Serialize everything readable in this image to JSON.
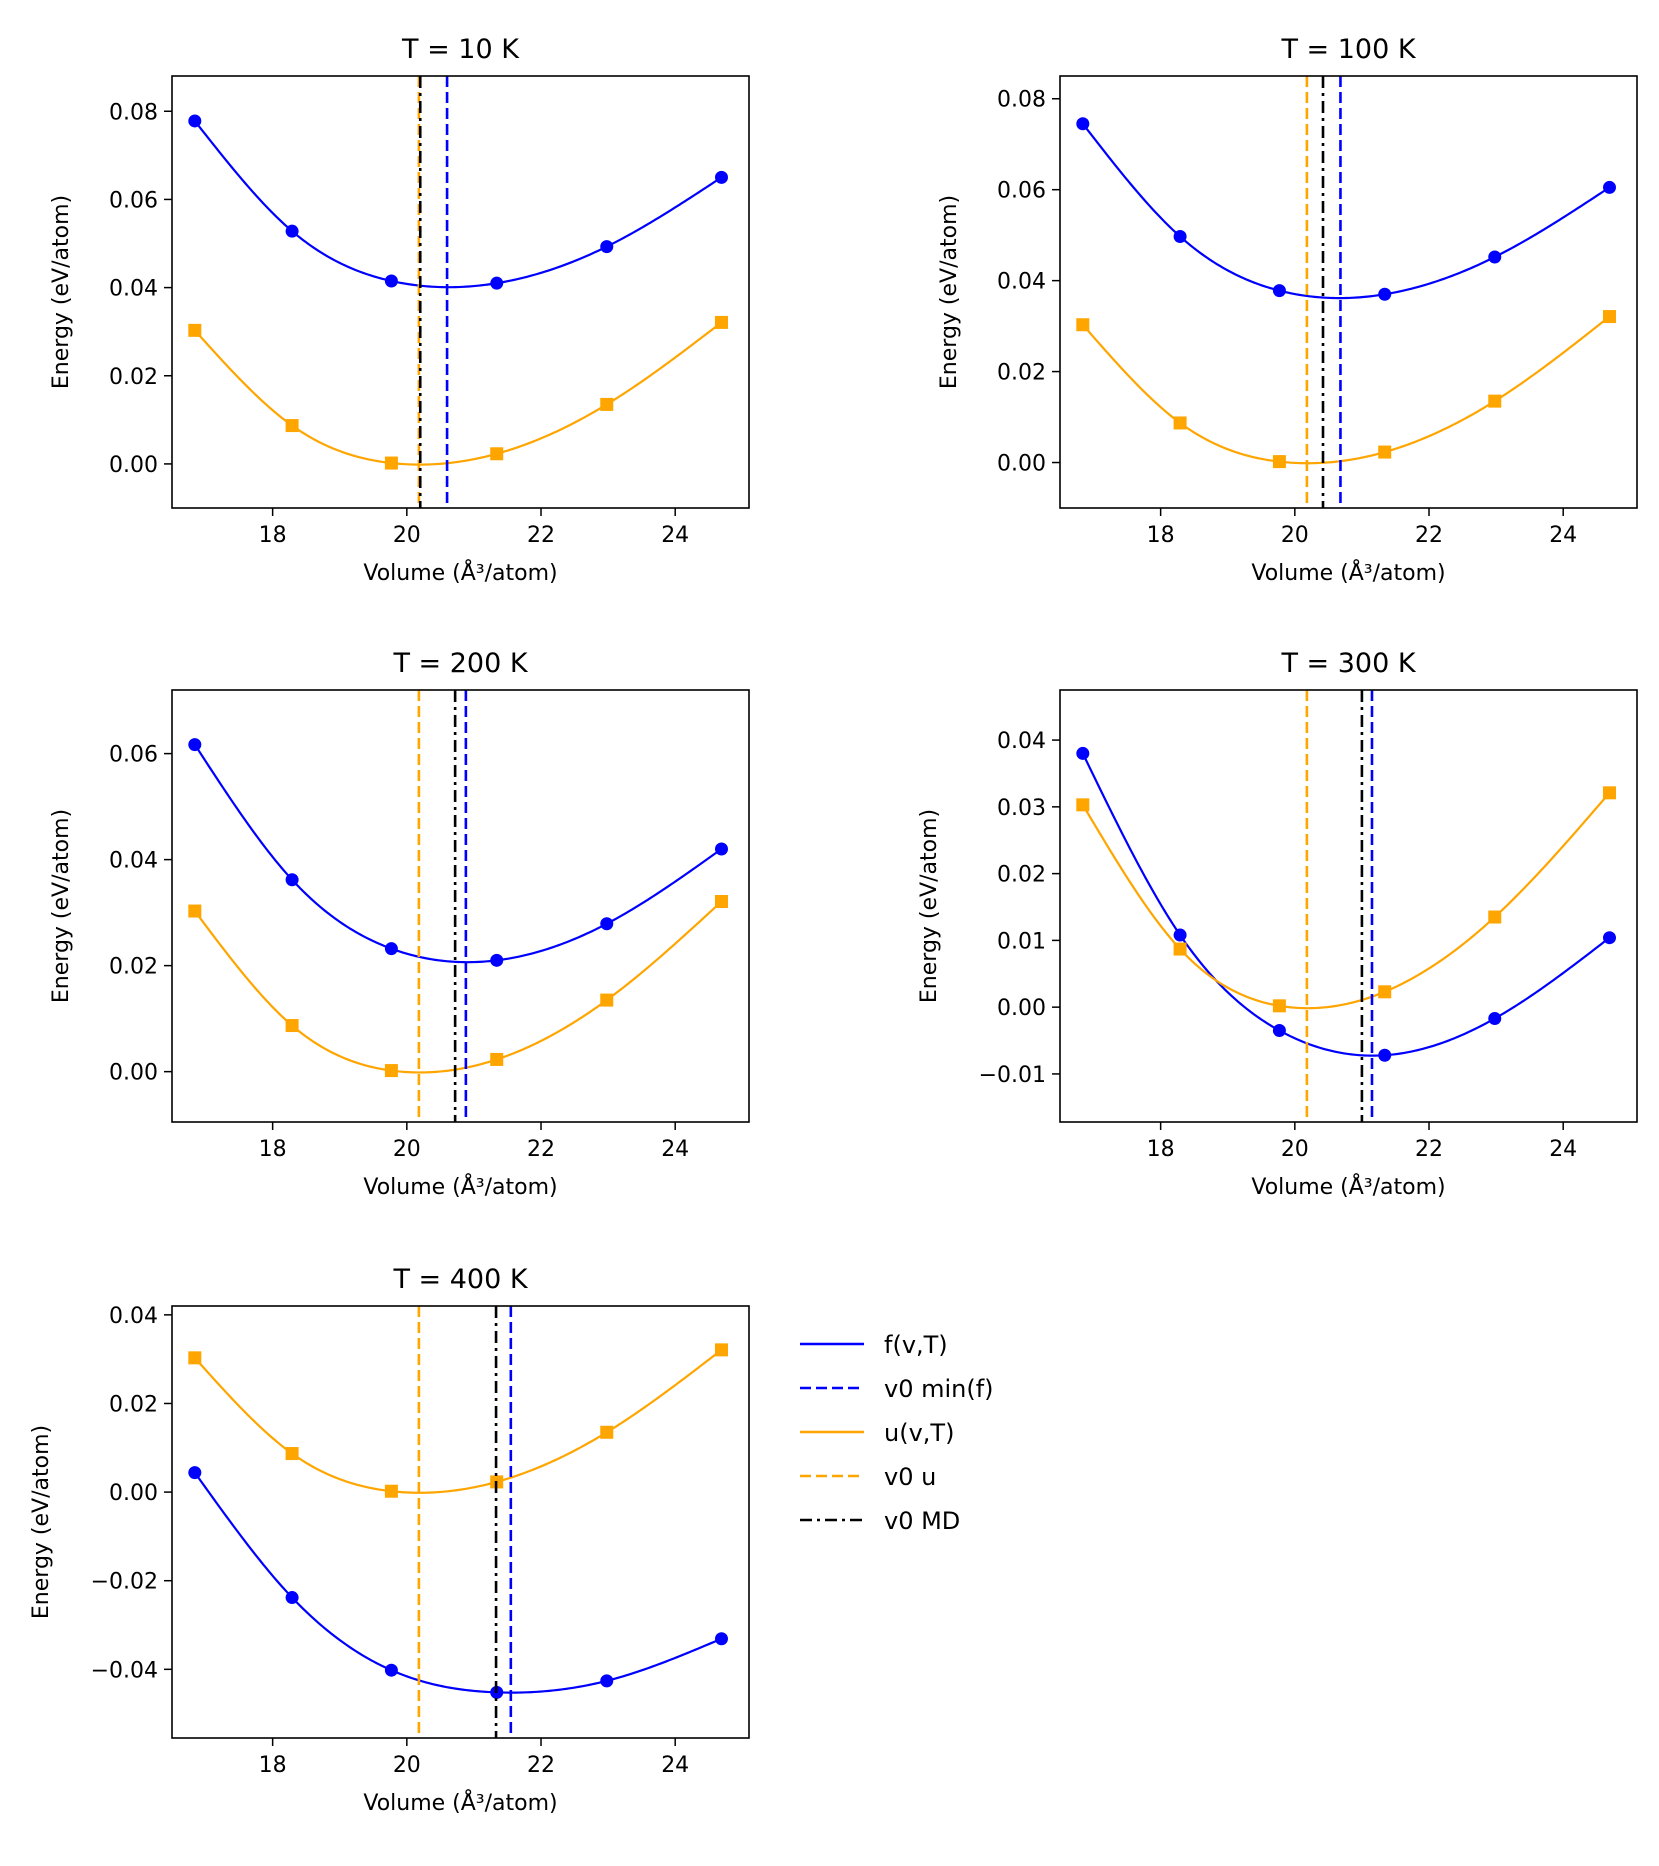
{
  "legend": [
    {
      "label": "f(v,T)",
      "color": "#0000ff",
      "dash": "solid"
    },
    {
      "label": "v0 min(f)",
      "color": "#0000ff",
      "dash": "dashed"
    },
    {
      "label": "u(v,T)",
      "color": "#ffa500",
      "dash": "solid"
    },
    {
      "label": "v0 u",
      "color": "#ffa500",
      "dash": "dashed"
    },
    {
      "label": "v0 MD",
      "color": "#000000",
      "dash": "dashdot"
    }
  ],
  "colors": {
    "f": "#0000ff",
    "u": "#ffa500",
    "md": "#000000"
  },
  "chart_data": [
    {
      "type": "line",
      "title": "T = 10 K",
      "xlabel": "Volume (Å³/atom)",
      "ylabel": "Energy (eV/atom)",
      "xlim": [
        16.5,
        25.1
      ],
      "ylim": [
        -0.01,
        0.088
      ],
      "xticks": [
        18,
        20,
        22,
        24
      ],
      "yticks": [
        0.0,
        0.02,
        0.04,
        0.06,
        0.08
      ],
      "ytick_labels": [
        "0.00",
        "0.02",
        "0.04",
        "0.06",
        "0.08"
      ],
      "volumes": [
        16.84,
        18.29,
        19.77,
        21.34,
        22.98,
        24.69
      ],
      "series": [
        {
          "name": "f(v,T)",
          "marker": "circle",
          "values": [
            0.0778,
            0.0528,
            0.0415,
            0.041,
            0.0493,
            0.065
          ]
        },
        {
          "name": "u(v,T)",
          "marker": "square",
          "values": [
            0.0303,
            0.0087,
            0.0002,
            0.0023,
            0.0135,
            0.0321
          ]
        }
      ],
      "vlines": {
        "v0 min(f)": 20.6,
        "v0 u": 20.18,
        "v0 MD": 20.2
      }
    },
    {
      "type": "line",
      "title": "T = 100 K",
      "xlabel": "Volume (Å³/atom)",
      "ylabel": "Energy (eV/atom)",
      "xlim": [
        16.5,
        25.1
      ],
      "ylim": [
        -0.01,
        0.085
      ],
      "xticks": [
        18,
        20,
        22,
        24
      ],
      "yticks": [
        0.0,
        0.02,
        0.04,
        0.06,
        0.08
      ],
      "ytick_labels": [
        "0.00",
        "0.02",
        "0.04",
        "0.06",
        "0.08"
      ],
      "volumes": [
        16.84,
        18.29,
        19.77,
        21.34,
        22.98,
        24.69
      ],
      "series": [
        {
          "name": "f(v,T)",
          "marker": "circle",
          "values": [
            0.0745,
            0.0497,
            0.0378,
            0.037,
            0.0452,
            0.0605
          ]
        },
        {
          "name": "u(v,T)",
          "marker": "square",
          "values": [
            0.0303,
            0.0087,
            0.0002,
            0.0023,
            0.0135,
            0.0321
          ]
        }
      ],
      "vlines": {
        "v0 min(f)": 20.68,
        "v0 u": 20.18,
        "v0 MD": 20.42
      }
    },
    {
      "type": "line",
      "title": "T = 200 K",
      "xlabel": "Volume (Å³/atom)",
      "ylabel": "Energy (eV/atom)",
      "xlim": [
        16.5,
        25.1
      ],
      "ylim": [
        -0.0095,
        0.072
      ],
      "xticks": [
        18,
        20,
        22,
        24
      ],
      "yticks": [
        0.0,
        0.02,
        0.04,
        0.06
      ],
      "ytick_labels": [
        "0.00",
        "0.02",
        "0.04",
        "0.06"
      ],
      "volumes": [
        16.84,
        18.29,
        19.77,
        21.34,
        22.98,
        24.69
      ],
      "series": [
        {
          "name": "f(v,T)",
          "marker": "circle",
          "values": [
            0.0617,
            0.0362,
            0.0232,
            0.021,
            0.0279,
            0.042
          ]
        },
        {
          "name": "u(v,T)",
          "marker": "square",
          "values": [
            0.0303,
            0.0087,
            0.0002,
            0.0023,
            0.0135,
            0.0321
          ]
        }
      ],
      "vlines": {
        "v0 min(f)": 20.88,
        "v0 u": 20.18,
        "v0 MD": 20.72
      }
    },
    {
      "type": "line",
      "title": "T = 300 K",
      "xlabel": "Volume (Å³/atom)",
      "ylabel": "Energy (eV/atom)",
      "xlim": [
        16.5,
        25.1
      ],
      "ylim": [
        -0.0172,
        0.0475
      ],
      "xticks": [
        18,
        20,
        22,
        24
      ],
      "yticks": [
        -0.01,
        0.0,
        0.01,
        0.02,
        0.03,
        0.04
      ],
      "ytick_labels": [
        "−0.01",
        "0.00",
        "0.01",
        "0.02",
        "0.03",
        "0.04"
      ],
      "volumes": [
        16.84,
        18.29,
        19.77,
        21.34,
        22.98,
        24.69
      ],
      "series": [
        {
          "name": "f(v,T)",
          "marker": "circle",
          "values": [
            0.038,
            0.0108,
            -0.0035,
            -0.0072,
            -0.0017,
            0.0104
          ]
        },
        {
          "name": "u(v,T)",
          "marker": "square",
          "values": [
            0.0303,
            0.0087,
            0.0002,
            0.0023,
            0.0135,
            0.0321
          ]
        }
      ],
      "vlines": {
        "v0 min(f)": 21.15,
        "v0 u": 20.18,
        "v0 MD": 21.0
      }
    },
    {
      "type": "line",
      "title": "T = 400 K",
      "xlabel": "Volume (Å³/atom)",
      "ylabel": "Energy (eV/atom)",
      "xlim": [
        16.5,
        25.1
      ],
      "ylim": [
        -0.0555,
        0.042
      ],
      "xticks": [
        18,
        20,
        22,
        24
      ],
      "yticks": [
        -0.04,
        -0.02,
        0.0,
        0.02,
        0.04
      ],
      "ytick_labels": [
        "−0.04",
        "−0.02",
        "0.00",
        "0.02",
        "0.04"
      ],
      "volumes": [
        16.84,
        18.29,
        19.77,
        21.34,
        22.98,
        24.69
      ],
      "series": [
        {
          "name": "f(v,T)",
          "marker": "circle",
          "values": [
            0.0044,
            -0.0238,
            -0.0402,
            -0.0452,
            -0.0426,
            -0.0331
          ]
        },
        {
          "name": "u(v,T)",
          "marker": "square",
          "values": [
            0.0303,
            0.0087,
            0.0002,
            0.0023,
            0.0135,
            0.0321
          ]
        }
      ],
      "vlines": {
        "v0 min(f)": 21.55,
        "v0 u": 20.18,
        "v0 MD": 21.33
      }
    }
  ]
}
